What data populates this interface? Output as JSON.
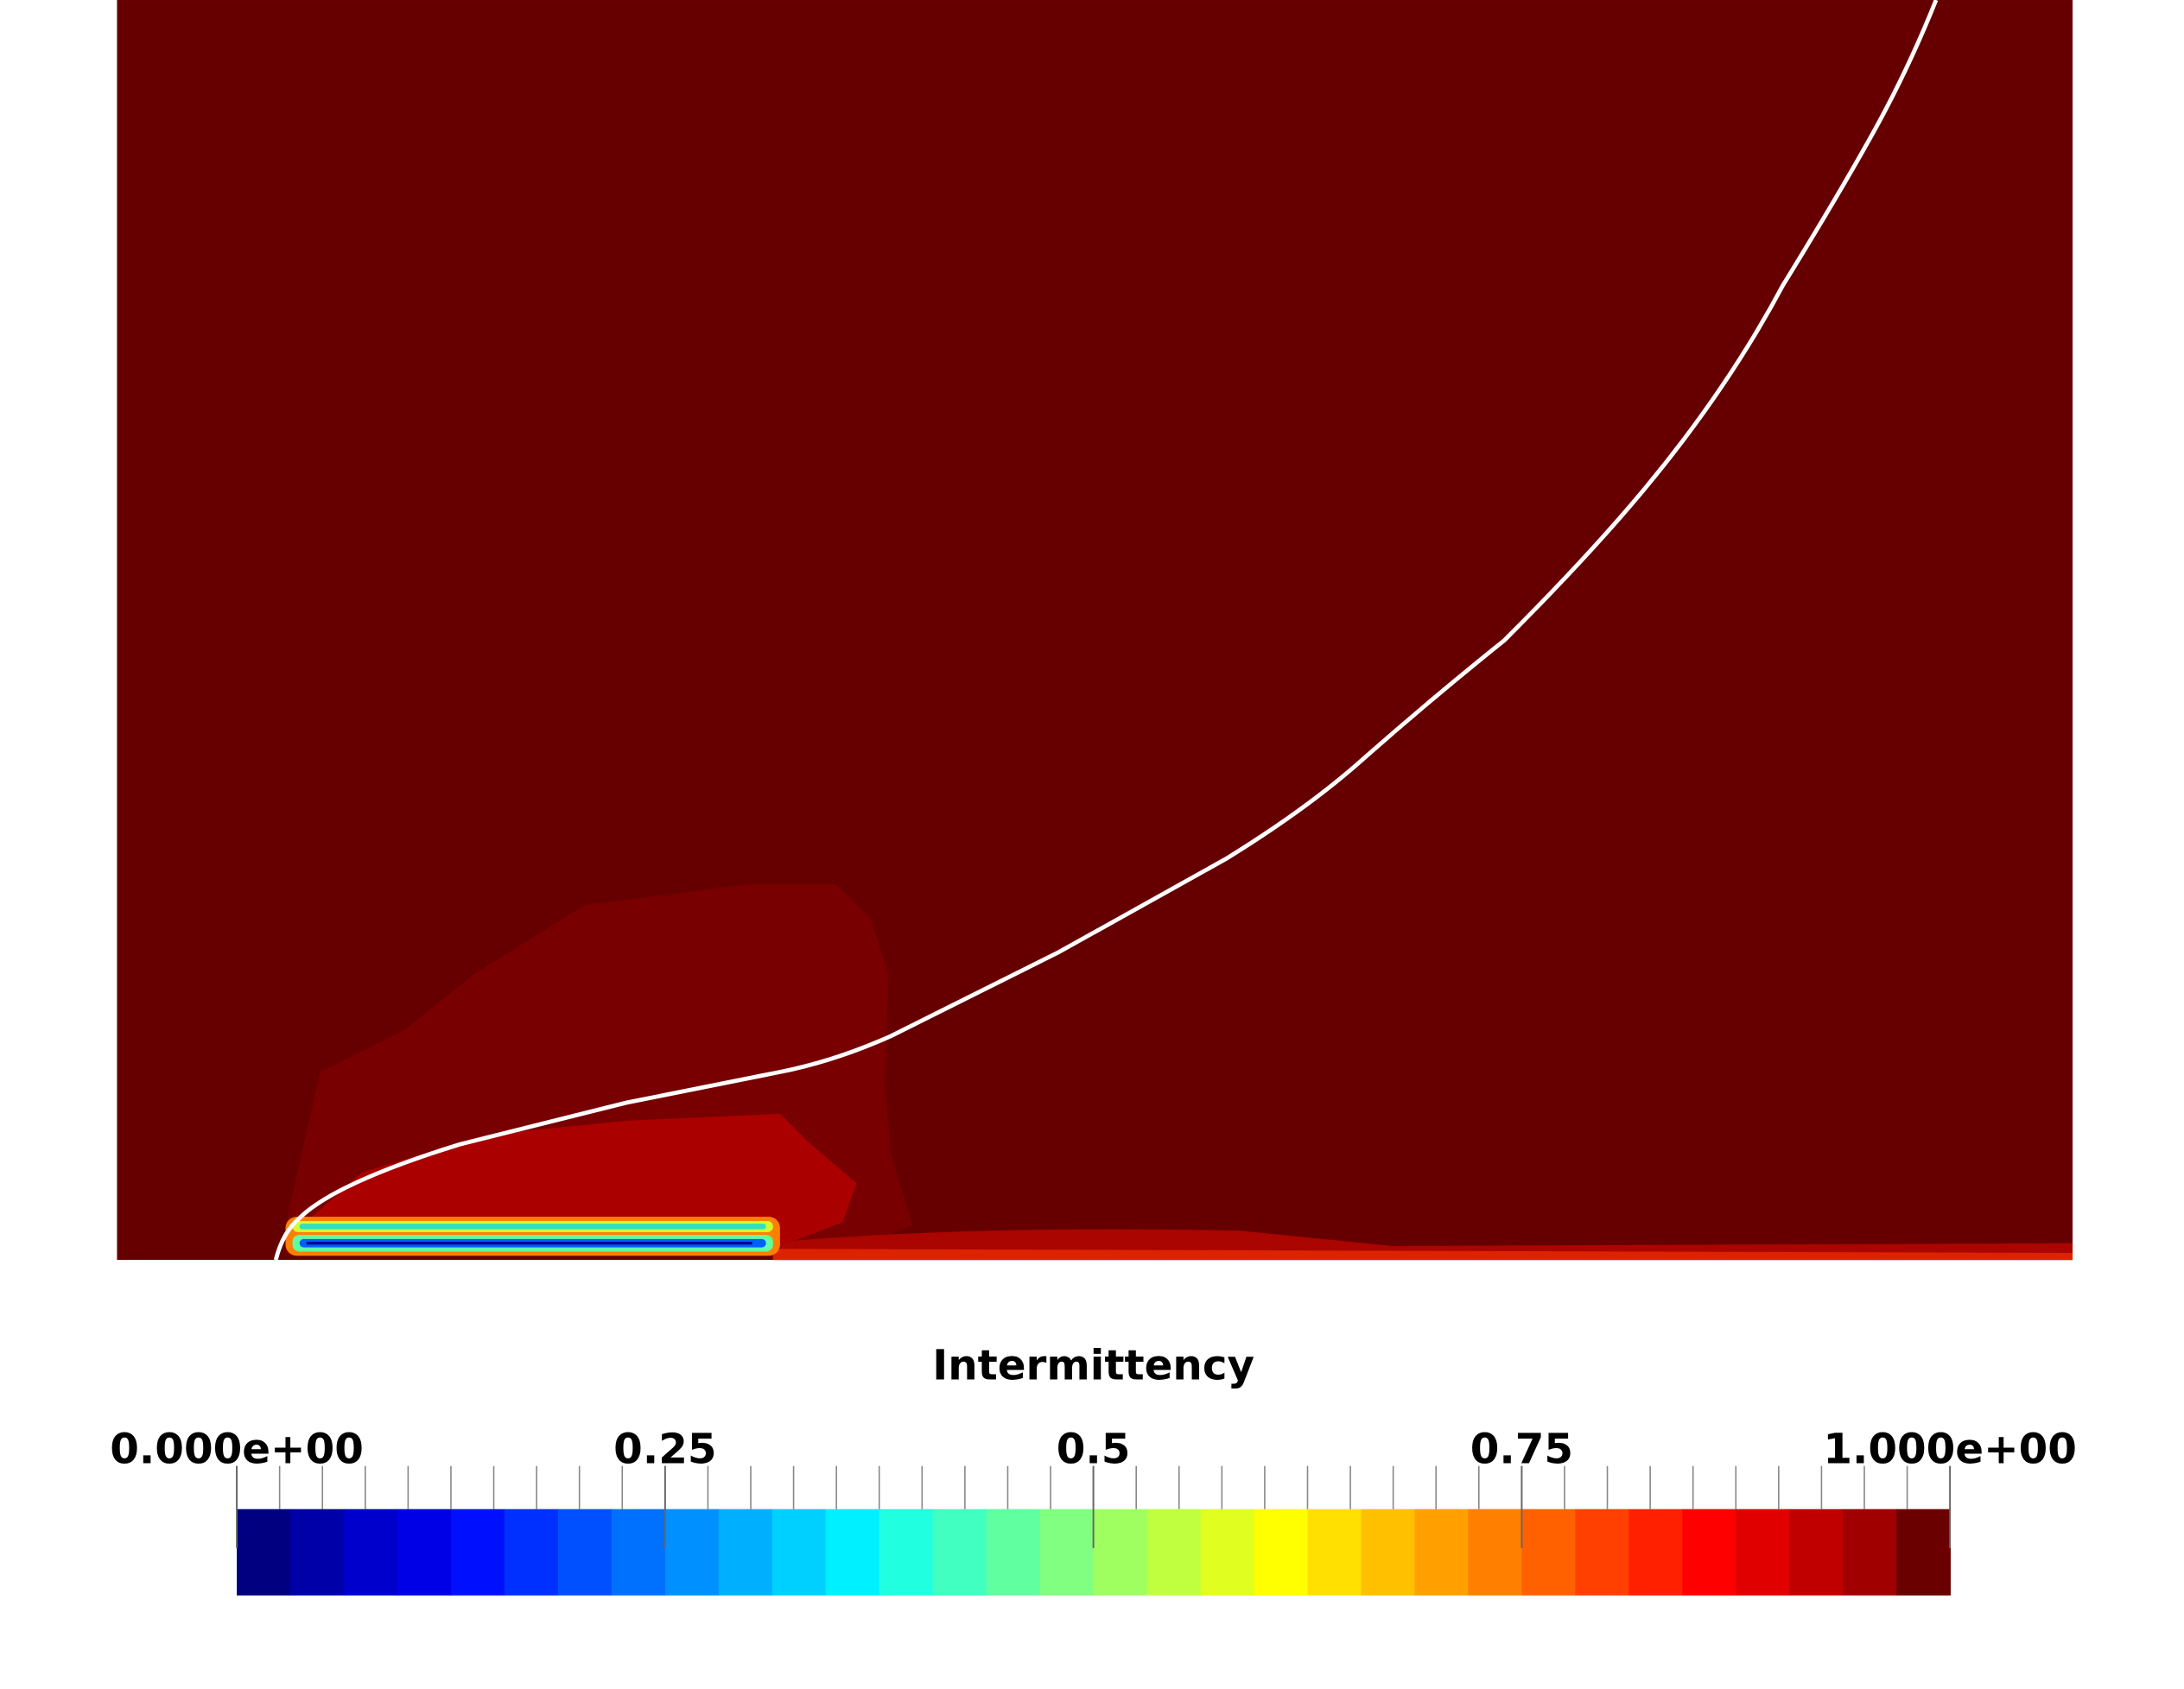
{
  "colorbar": {
    "title": "Intermittency",
    "range": [
      0,
      1
    ],
    "ticks": [
      {
        "value": 0,
        "label": "0.000e+00"
      },
      0.25,
      0.5,
      0.75,
      {
        "value": 1,
        "label": "1.000e+00"
      }
    ],
    "colors": [
      "#000080",
      "#0000a8",
      "#0000cc",
      "#0000e6",
      "#0010ff",
      "#0030ff",
      "#0050ff",
      "#0070ff",
      "#0090ff",
      "#00b0ff",
      "#00d0ff",
      "#00f0ff",
      "#20ffe0",
      "#40ffc0",
      "#60ffa0",
      "#80ff80",
      "#a0ff60",
      "#c0ff40",
      "#e0ff20",
      "#ffff00",
      "#ffe000",
      "#ffc000",
      "#ffa000",
      "#ff8000",
      "#ff6000",
      "#ff4000",
      "#ff2000",
      "#ff0000",
      "#e00000",
      "#c00000",
      "#a00000",
      "#6a0000"
    ]
  }
}
